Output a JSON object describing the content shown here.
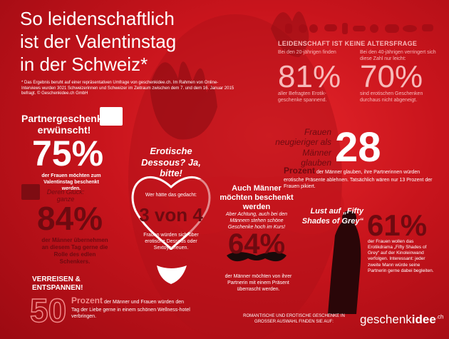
{
  "title": [
    "So leidenschaftlich",
    "ist der Valentinstag",
    "in der Schweiz*"
  ],
  "footnote": "* Das Ergebnis beruht auf einer repräsentativen Umfrage von geschenkidee.ch. Im Rahmen von Online-Interviews wurden 3021 Schweizerinnen und Schweizer im Zeitraum zwischen dem 7. und dem 16. Januar 2015 befragt. © Geschenkidee.ch GmbH",
  "partner": {
    "heading": "Partnergeschenke erwünscht!",
    "stat1": "75%",
    "text1": "der Frauen möchten zum Valentinstag beschenkt werden.",
    "lead2": "Deren Glück: ganze",
    "stat2": "84%",
    "text2": "der Männer übernehmen an diesem Tag gerne die Rolle des edlen Schenkers."
  },
  "dessous": {
    "heading": "Erotische Dessous? Ja, bitte!",
    "lead": "Wer hätte das gedacht:",
    "stat": "3 von 4",
    "text": "Frauen würden sich über erotische Dessous oder Sextoys freuen."
  },
  "age": {
    "heading": "LEIDENSCHAFT IST KEINE ALTERSFRAGE",
    "items": [
      {
        "lead": "Bei den 20-jährigen finden",
        "stat": "81%",
        "text": "aller Befragten Erotik-geschenke spannend."
      },
      {
        "lead": "Bei den 40-jährigen verringert sich diese Zahl nur leicht:",
        "stat": "70%",
        "text": "sind erotischen Geschenken durchaus nicht abgeneigt."
      }
    ]
  },
  "curious": {
    "heading": "Frauen neugieriger als Männer glauben",
    "stat": "28",
    "unit": "Prozent",
    "text": "der Männer glauben, ihre Partnerinnen würden erotische Präsente ablehnen. Tatsächlich wären nur 13 Prozent der Frauen pikiert."
  },
  "men": {
    "heading": "Auch Männer möchten beschenkt werden",
    "lead": "Aber Achtung, auch bei den Männern stehen schöne Geschenke hoch im Kurs!",
    "stat": "64%",
    "text": "der Männer möchten von ihrer Partnerin mit einem Präsent überrascht werden."
  },
  "fifty": {
    "heading": "Lust auf „Fifty Shades of Grey“",
    "stat": "61%",
    "text": "der Frauen wollen das Erotikdrama „Fifty Shades of Grey“ auf der Kinoleinwand verfolgen. Interessant: jeder zweite Mann würde seine Partnerin gerne dabei begleiten."
  },
  "travel": {
    "heading": "VERREISEN & ENTSPANNEN!",
    "stat": "50",
    "unit": "Prozent",
    "text": "der Männer und Frauen würden den Tag der Liebe gerne in einem schönen Wellness-hotel verbringen."
  },
  "footer": {
    "text": "ROMANTISCHE UND EROTISCHE GESCHENKE IN GROSSER AUSWAHL FINDEN SIE AUF:",
    "logo": [
      "geschenk",
      "idee",
      ".ch"
    ]
  }
}
